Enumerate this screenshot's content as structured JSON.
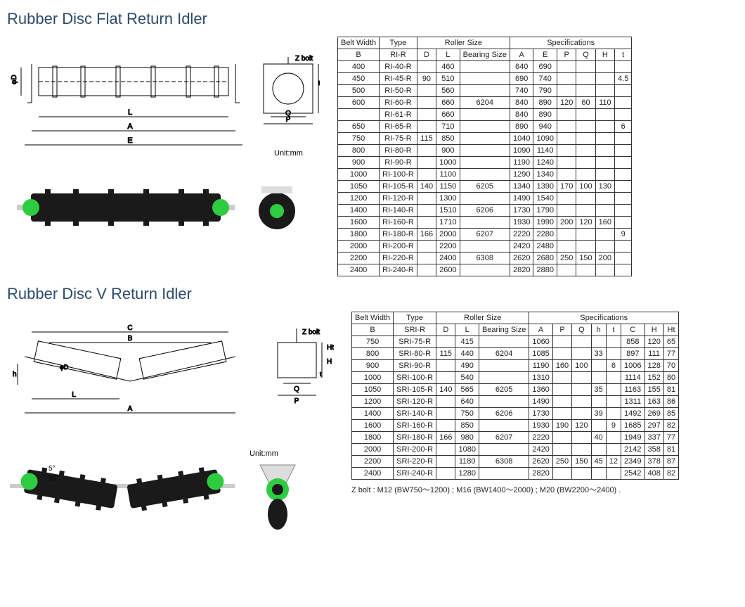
{
  "title1": "Rubber Disc Flat Return Idler",
  "title2": "Rubber Disc V Return Idler",
  "unit_label": "Unit:mm",
  "zbolt_label": "Z bolt",
  "table1": {
    "headers": {
      "belt_width": "Belt Width",
      "type": "Type",
      "roller_size": "Roller Size",
      "specs": "Specifications",
      "B": "B",
      "RI_R": "RI-R",
      "D": "D",
      "L": "L",
      "bearing": "Bearing Size",
      "A": "A",
      "E": "E",
      "P": "P",
      "Q": "Q",
      "H": "H",
      "t": "t"
    },
    "rows": [
      {
        "B": "400",
        "type": "RI-40-R",
        "D": "",
        "L": "460",
        "bearing": "",
        "A": "640",
        "E": "690",
        "P": "",
        "Q": "",
        "H": "",
        "t": ""
      },
      {
        "B": "450",
        "type": "RI-45-R",
        "D": "90",
        "L": "510",
        "bearing": "",
        "A": "690",
        "E": "740",
        "P": "",
        "Q": "",
        "H": "",
        "t": "4.5"
      },
      {
        "B": "500",
        "type": "RI-50-R",
        "D": "",
        "L": "560",
        "bearing": "",
        "A": "740",
        "E": "790",
        "P": "",
        "Q": "",
        "H": "",
        "t": ""
      },
      {
        "B": "600",
        "type": "RI-60-R",
        "D": "",
        "L": "660",
        "bearing": "6204",
        "A": "840",
        "E": "890",
        "P": "120",
        "Q": "60",
        "H": "110",
        "t": ""
      },
      {
        "B": "",
        "type": "RI-61-R",
        "D": "",
        "L": "660",
        "bearing": "",
        "A": "840",
        "E": "890",
        "P": "",
        "Q": "",
        "H": "",
        "t": ""
      },
      {
        "B": "650",
        "type": "RI-65-R",
        "D": "",
        "L": "710",
        "bearing": "",
        "A": "890",
        "E": "940",
        "P": "",
        "Q": "",
        "H": "",
        "t": "6"
      },
      {
        "B": "750",
        "type": "RI-75-R",
        "D": "115",
        "L": "850",
        "bearing": "",
        "A": "1040",
        "E": "1090",
        "P": "",
        "Q": "",
        "H": "",
        "t": ""
      },
      {
        "B": "800",
        "type": "RI-80-R",
        "D": "",
        "L": "900",
        "bearing": "",
        "A": "1090",
        "E": "1140",
        "P": "",
        "Q": "",
        "H": "",
        "t": ""
      },
      {
        "B": "900",
        "type": "RI-90-R",
        "D": "",
        "L": "1000",
        "bearing": "",
        "A": "1190",
        "E": "1240",
        "P": "",
        "Q": "",
        "H": "",
        "t": ""
      },
      {
        "B": "1000",
        "type": "RI-100-R",
        "D": "",
        "L": "1100",
        "bearing": "",
        "A": "1290",
        "E": "1340",
        "P": "",
        "Q": "",
        "H": "",
        "t": ""
      },
      {
        "B": "1050",
        "type": "RI-105-R",
        "D": "140",
        "L": "1150",
        "bearing": "6205",
        "A": "1340",
        "E": "1390",
        "P": "170",
        "Q": "100",
        "H": "130",
        "t": ""
      },
      {
        "B": "1200",
        "type": "RI-120-R",
        "D": "",
        "L": "1300",
        "bearing": "",
        "A": "1490",
        "E": "1540",
        "P": "",
        "Q": "",
        "H": "",
        "t": ""
      },
      {
        "B": "1400",
        "type": "RI-140-R",
        "D": "",
        "L": "1510",
        "bearing": "6206",
        "A": "1730",
        "E": "1790",
        "P": "",
        "Q": "",
        "H": "",
        "t": ""
      },
      {
        "B": "1600",
        "type": "RI-160-R",
        "D": "",
        "L": "1710",
        "bearing": "",
        "A": "1930",
        "E": "1990",
        "P": "200",
        "Q": "120",
        "H": "160",
        "t": ""
      },
      {
        "B": "1800",
        "type": "RI-180-R",
        "D": "166",
        "L": "2000",
        "bearing": "6207",
        "A": "2220",
        "E": "2280",
        "P": "",
        "Q": "",
        "H": "",
        "t": "9"
      },
      {
        "B": "2000",
        "type": "RI-200-R",
        "D": "",
        "L": "2200",
        "bearing": "",
        "A": "2420",
        "E": "2480",
        "P": "",
        "Q": "",
        "H": "",
        "t": ""
      },
      {
        "B": "2200",
        "type": "RI-220-R",
        "D": "",
        "L": "2400",
        "bearing": "6308",
        "A": "2620",
        "E": "2680",
        "P": "250",
        "Q": "150",
        "H": "200",
        "t": ""
      },
      {
        "B": "2400",
        "type": "RI-240-R",
        "D": "",
        "L": "2600",
        "bearing": "",
        "A": "2820",
        "E": "2880",
        "P": "",
        "Q": "",
        "H": "",
        "t": ""
      }
    ]
  },
  "table2": {
    "headers": {
      "belt_width": "Belt Width",
      "type": "Type",
      "roller_size": "Roller Size",
      "specs": "Specifications",
      "B": "B",
      "SRI_R": "SRI-R",
      "D": "D",
      "L": "L",
      "bearing": "Bearing Size",
      "A": "A",
      "P": "P",
      "Q": "Q",
      "h": "h",
      "t": "t",
      "C": "C",
      "H": "H",
      "Ht": "Ht"
    },
    "rows": [
      {
        "B": "750",
        "type": "SRI-75-R",
        "D": "",
        "L": "415",
        "bearing": "",
        "A": "1060",
        "P": "",
        "Q": "",
        "h": "",
        "t": "",
        "C": "858",
        "H": "120",
        "Ht": "65"
      },
      {
        "B": "800",
        "type": "SRI-80-R",
        "D": "115",
        "L": "440",
        "bearing": "6204",
        "A": "1085",
        "P": "",
        "Q": "",
        "h": "33",
        "t": "",
        "C": "897",
        "H": "111",
        "Ht": "77"
      },
      {
        "B": "900",
        "type": "SRI-90-R",
        "D": "",
        "L": "490",
        "bearing": "",
        "A": "1190",
        "P": "160",
        "Q": "100",
        "h": "",
        "t": "6",
        "C": "1006",
        "H": "128",
        "Ht": "70"
      },
      {
        "B": "1000",
        "type": "SRI-100-R",
        "D": "",
        "L": "540",
        "bearing": "",
        "A": "1310",
        "P": "",
        "Q": "",
        "h": "",
        "t": "",
        "C": "1114",
        "H": "152",
        "Ht": "80"
      },
      {
        "B": "1050",
        "type": "SRI-105-R",
        "D": "140",
        "L": "565",
        "bearing": "6205",
        "A": "1360",
        "P": "",
        "Q": "",
        "h": "35",
        "t": "",
        "C": "1163",
        "H": "155",
        "Ht": "81"
      },
      {
        "B": "1200",
        "type": "SRI-120-R",
        "D": "",
        "L": "640",
        "bearing": "",
        "A": "1490",
        "P": "",
        "Q": "",
        "h": "",
        "t": "",
        "C": "1311",
        "H": "163",
        "Ht": "86"
      },
      {
        "B": "1400",
        "type": "SRI-140-R",
        "D": "",
        "L": "750",
        "bearing": "6206",
        "A": "1730",
        "P": "",
        "Q": "",
        "h": "39",
        "t": "",
        "C": "1492",
        "H": "269",
        "Ht": "85"
      },
      {
        "B": "1600",
        "type": "SRI-160-R",
        "D": "",
        "L": "850",
        "bearing": "",
        "A": "1930",
        "P": "190",
        "Q": "120",
        "h": "",
        "t": "9",
        "C": "1685",
        "H": "297",
        "Ht": "82"
      },
      {
        "B": "1800",
        "type": "SRI-180-R",
        "D": "166",
        "L": "980",
        "bearing": "6207",
        "A": "2220",
        "P": "",
        "Q": "",
        "h": "40",
        "t": "",
        "C": "1949",
        "H": "337",
        "Ht": "77"
      },
      {
        "B": "2000",
        "type": "SRI-200-R",
        "D": "",
        "L": "1080",
        "bearing": "",
        "A": "2420",
        "P": "",
        "Q": "",
        "h": "",
        "t": "",
        "C": "2142",
        "H": "358",
        "Ht": "81"
      },
      {
        "B": "2200",
        "type": "SRI-220-R",
        "D": "",
        "L": "1180",
        "bearing": "6308",
        "A": "2620",
        "P": "250",
        "Q": "150",
        "h": "45",
        "t": "12",
        "C": "2349",
        "H": "378",
        "Ht": "87"
      },
      {
        "B": "2400",
        "type": "SRI-240-R",
        "D": "",
        "L": "1280",
        "bearing": "",
        "A": "2820",
        "P": "",
        "Q": "",
        "h": "",
        "t": "",
        "C": "2542",
        "H": "408",
        "Ht": "82"
      }
    ]
  },
  "footnote": "Z bolt : M12 (BW750～1200) ; M16 (BW1400～2000) ; M20 (BW2200～2400) .",
  "angles": {
    "five": "5°",
    "ten": "10°"
  },
  "colors": {
    "title": "#2d4a6b",
    "border": "#333333",
    "roller_body": "#1a1a1a",
    "roller_end": "#2ecc40",
    "line": "#000000"
  }
}
